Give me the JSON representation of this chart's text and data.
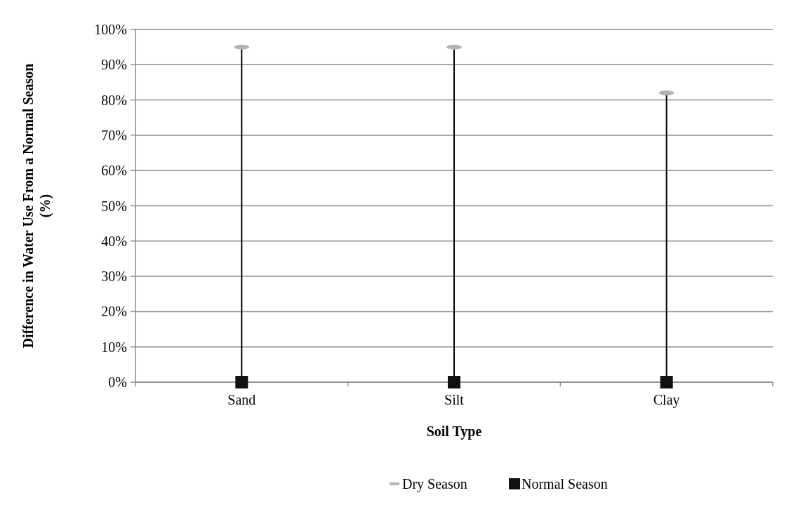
{
  "chart_data": {
    "type": "scatter",
    "xlabel": "Soil Type",
    "ylabel": "Difference in Water Use From a Normal Season (%)",
    "categories": [
      "Sand",
      "Silt",
      "Clay"
    ],
    "series": [
      {
        "name": "Dry Season",
        "type": "lollipop",
        "color": "#b3b3b3",
        "values": [
          95,
          95,
          82
        ]
      },
      {
        "name": "Normal Season",
        "marker": "square",
        "color": "#111111",
        "values": [
          0,
          0,
          0
        ]
      }
    ],
    "ylim": [
      0,
      100
    ],
    "yticks": [
      {
        "value": 0,
        "label": "0%"
      },
      {
        "value": 10,
        "label": "10%"
      },
      {
        "value": 20,
        "label": "20%"
      },
      {
        "value": 30,
        "label": "30%"
      },
      {
        "value": 40,
        "label": "40%"
      },
      {
        "value": 50,
        "label": "50%"
      },
      {
        "value": 60,
        "label": "60%"
      },
      {
        "value": 70,
        "label": "70%"
      },
      {
        "value": 80,
        "label": "80%"
      },
      {
        "value": 90,
        "label": "90%"
      },
      {
        "value": 100,
        "label": "100%"
      }
    ],
    "grid": "y",
    "legend": "bottom"
  }
}
